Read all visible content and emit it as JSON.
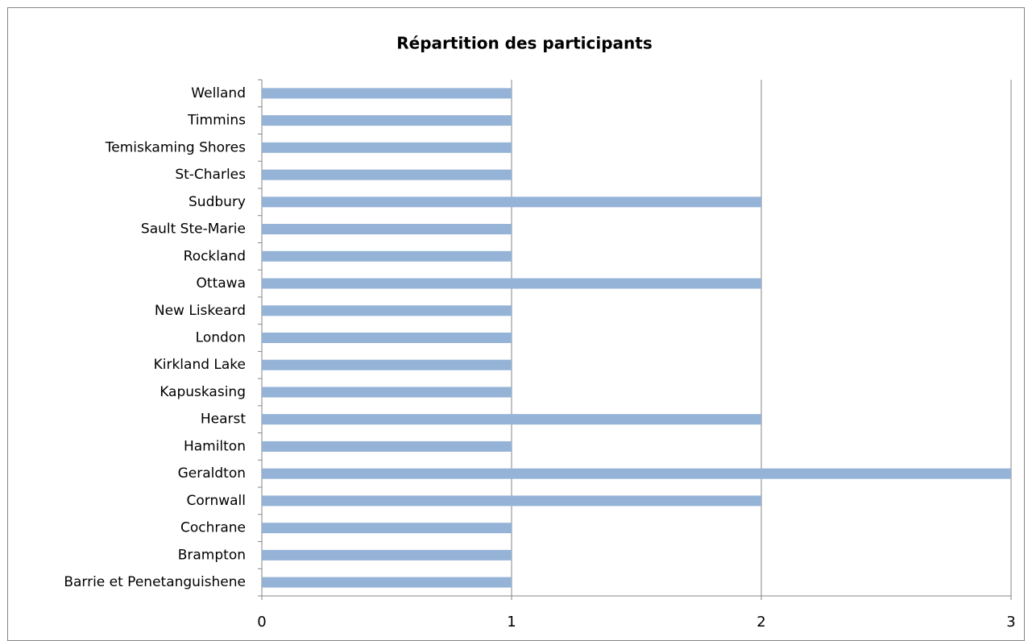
{
  "chart_data": {
    "type": "bar",
    "orientation": "horizontal",
    "title": "Répartition des participants",
    "categories": [
      "Barrie et Penetanguishene",
      "Brampton",
      "Cochrane",
      "Cornwall",
      "Geraldton",
      "Hamilton",
      "Hearst",
      "Kapuskasing",
      "Kirkland Lake",
      "London",
      "New Liskeard",
      "Ottawa",
      "Rockland",
      "Sault Ste-Marie",
      "Sudbury",
      "St-Charles",
      "Temiskaming Shores",
      "Timmins",
      "Welland"
    ],
    "values": [
      1,
      1,
      1,
      2,
      3,
      1,
      2,
      1,
      1,
      1,
      1,
      2,
      1,
      1,
      2,
      1,
      1,
      1,
      1
    ],
    "color": "#95b3d7",
    "xlim": [
      0,
      3
    ],
    "xticks": [
      0,
      1,
      2,
      3
    ],
    "grid": true
  }
}
